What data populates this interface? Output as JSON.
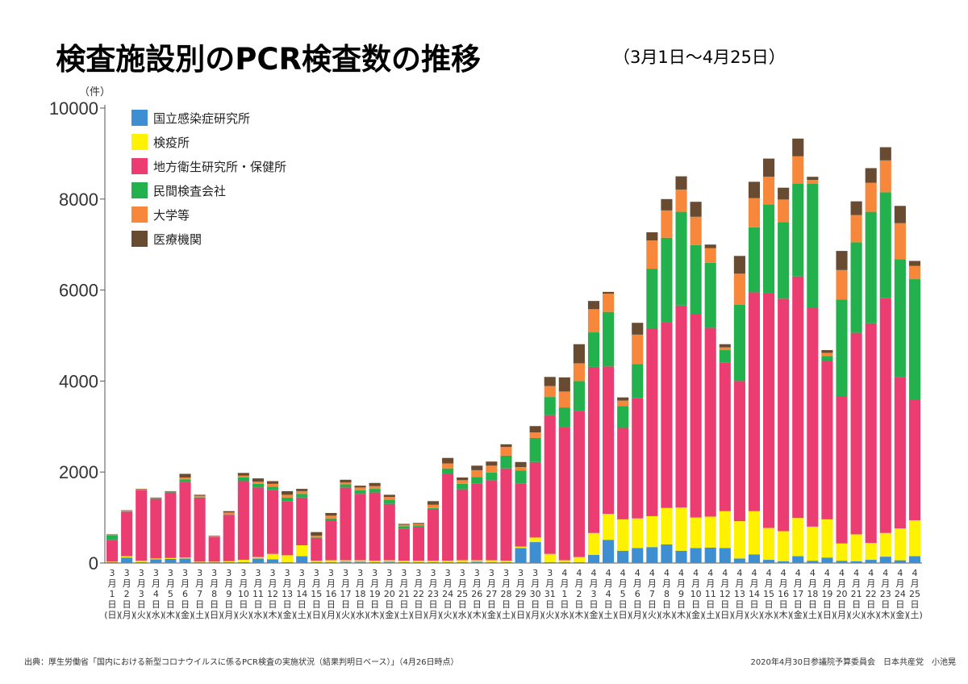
{
  "chart_data": {
    "type": "bar",
    "stacked": true,
    "title": "検査施設別のPCR検査数の推移",
    "subtitle": "（3月1日〜4月25日）",
    "ylabel": "（件）",
    "ylim": [
      0,
      10000
    ],
    "yticks": [
      0,
      2000,
      4000,
      6000,
      8000,
      10000
    ],
    "yticklabels": [
      "0",
      "2000",
      "4000",
      "6000",
      "8000",
      "10000"
    ],
    "legend_position": "top-left",
    "categories": [
      {
        "m": "3",
        "d": "1",
        "w": "日"
      },
      {
        "m": "3",
        "d": "2",
        "w": "月"
      },
      {
        "m": "3",
        "d": "3",
        "w": "火"
      },
      {
        "m": "3",
        "d": "4",
        "w": "水"
      },
      {
        "m": "3",
        "d": "5",
        "w": "木"
      },
      {
        "m": "3",
        "d": "6",
        "w": "金"
      },
      {
        "m": "3",
        "d": "7",
        "w": "土"
      },
      {
        "m": "3",
        "d": "8",
        "w": "日"
      },
      {
        "m": "3",
        "d": "9",
        "w": "月"
      },
      {
        "m": "3",
        "d": "10",
        "w": "火"
      },
      {
        "m": "3",
        "d": "11",
        "w": "水"
      },
      {
        "m": "3",
        "d": "12",
        "w": "木"
      },
      {
        "m": "3",
        "d": "13",
        "w": "金"
      },
      {
        "m": "3",
        "d": "14",
        "w": "土"
      },
      {
        "m": "3",
        "d": "15",
        "w": "日"
      },
      {
        "m": "3",
        "d": "16",
        "w": "月"
      },
      {
        "m": "3",
        "d": "17",
        "w": "火"
      },
      {
        "m": "3",
        "d": "18",
        "w": "水"
      },
      {
        "m": "3",
        "d": "19",
        "w": "木"
      },
      {
        "m": "3",
        "d": "20",
        "w": "金"
      },
      {
        "m": "3",
        "d": "21",
        "w": "土"
      },
      {
        "m": "3",
        "d": "22",
        "w": "日"
      },
      {
        "m": "3",
        "d": "23",
        "w": "月"
      },
      {
        "m": "3",
        "d": "24",
        "w": "火"
      },
      {
        "m": "3",
        "d": "25",
        "w": "水"
      },
      {
        "m": "3",
        "d": "26",
        "w": "木"
      },
      {
        "m": "3",
        "d": "27",
        "w": "金"
      },
      {
        "m": "3",
        "d": "28",
        "w": "土"
      },
      {
        "m": "3",
        "d": "29",
        "w": "日"
      },
      {
        "m": "3",
        "d": "30",
        "w": "月"
      },
      {
        "m": "3",
        "d": "31",
        "w": "火"
      },
      {
        "m": "4",
        "d": "1",
        "w": "水"
      },
      {
        "m": "4",
        "d": "2",
        "w": "木"
      },
      {
        "m": "4",
        "d": "3",
        "w": "金"
      },
      {
        "m": "4",
        "d": "4",
        "w": "土"
      },
      {
        "m": "4",
        "d": "5",
        "w": "日"
      },
      {
        "m": "4",
        "d": "6",
        "w": "月"
      },
      {
        "m": "4",
        "d": "7",
        "w": "火"
      },
      {
        "m": "4",
        "d": "8",
        "w": "水"
      },
      {
        "m": "4",
        "d": "9",
        "w": "木"
      },
      {
        "m": "4",
        "d": "10",
        "w": "金"
      },
      {
        "m": "4",
        "d": "11",
        "w": "土"
      },
      {
        "m": "4",
        "d": "12",
        "w": "日"
      },
      {
        "m": "4",
        "d": "13",
        "w": "月"
      },
      {
        "m": "4",
        "d": "14",
        "w": "火"
      },
      {
        "m": "4",
        "d": "15",
        "w": "水"
      },
      {
        "m": "4",
        "d": "16",
        "w": "木"
      },
      {
        "m": "4",
        "d": "17",
        "w": "金"
      },
      {
        "m": "4",
        "d": "18",
        "w": "土"
      },
      {
        "m": "4",
        "d": "19",
        "w": "日"
      },
      {
        "m": "4",
        "d": "20",
        "w": "月"
      },
      {
        "m": "4",
        "d": "21",
        "w": "火"
      },
      {
        "m": "4",
        "d": "22",
        "w": "水"
      },
      {
        "m": "4",
        "d": "23",
        "w": "木"
      },
      {
        "m": "4",
        "d": "24",
        "w": "金"
      },
      {
        "m": "4",
        "d": "25",
        "w": "土"
      }
    ],
    "month_suffix": "月",
    "day_suffix": "日",
    "series": [
      {
        "name": "国立感染症研究所",
        "color": "#3d8fd1",
        "values": [
          20,
          120,
          20,
          80,
          90,
          100,
          20,
          20,
          20,
          20,
          100,
          80,
          20,
          150,
          20,
          20,
          30,
          30,
          20,
          30,
          20,
          20,
          20,
          20,
          20,
          30,
          20,
          20,
          330,
          460,
          20,
          20,
          20,
          180,
          510,
          270,
          330,
          350,
          410,
          270,
          330,
          340,
          330,
          100,
          190,
          70,
          40,
          150,
          50,
          120,
          50,
          40,
          70,
          140,
          60,
          150
        ]
      },
      {
        "name": "検疫所",
        "color": "#fff200",
        "values": [
          10,
          30,
          30,
          20,
          20,
          20,
          10,
          10,
          20,
          50,
          30,
          120,
          150,
          240,
          30,
          40,
          30,
          30,
          30,
          30,
          30,
          30,
          30,
          30,
          40,
          30,
          40,
          30,
          30,
          100,
          180,
          40,
          110,
          480,
          570,
          690,
          650,
          680,
          800,
          950,
          670,
          680,
          810,
          820,
          950,
          700,
          660,
          840,
          750,
          840,
          380,
          590,
          370,
          520,
          700,
          790
        ]
      },
      {
        "name": "地方衛生研究所・保健所",
        "color": "#ec3d72",
        "values": [
          480,
          980,
          1550,
          1310,
          1440,
          1660,
          1410,
          540,
          1020,
          1730,
          1530,
          1400,
          1190,
          1050,
          500,
          880,
          1600,
          1460,
          1500,
          1240,
          700,
          750,
          1140,
          1910,
          1560,
          1680,
          1750,
          2030,
          1390,
          1660,
          3050,
          2920,
          3210,
          3650,
          3240,
          2010,
          2650,
          4130,
          4090,
          4440,
          4470,
          4150,
          3270,
          3080,
          4810,
          5160,
          5110,
          5310,
          4820,
          3490,
          3240,
          4430,
          4830,
          5160,
          3330,
          2650
        ]
      },
      {
        "name": "民間検査会社",
        "color": "#22b14c",
        "values": [
          100,
          10,
          10,
          10,
          10,
          60,
          10,
          10,
          10,
          80,
          80,
          80,
          80,
          80,
          10,
          40,
          70,
          80,
          80,
          90,
          60,
          30,
          20,
          120,
          120,
          150,
          180,
          280,
          280,
          530,
          400,
          440,
          660,
          760,
          1200,
          480,
          740,
          1310,
          1850,
          2060,
          1520,
          1430,
          270,
          1680,
          1430,
          1950,
          1680,
          2040,
          2720,
          100,
          2120,
          1990,
          2450,
          2330,
          2590,
          2650
        ]
      },
      {
        "name": "大学等",
        "color": "#f7873b",
        "values": [
          10,
          10,
          10,
          10,
          10,
          40,
          30,
          10,
          40,
          40,
          50,
          60,
          60,
          60,
          40,
          60,
          40,
          60,
          60,
          60,
          30,
          30,
          70,
          110,
          80,
          150,
          150,
          190,
          80,
          120,
          240,
          350,
          390,
          510,
          400,
          120,
          650,
          620,
          600,
          490,
          620,
          320,
          60,
          680,
          640,
          610,
          500,
          600,
          80,
          70,
          650,
          600,
          640,
          700,
          790,
          290
        ]
      },
      {
        "name": "医療機関",
        "color": "#694b32",
        "values": [
          10,
          10,
          10,
          10,
          10,
          80,
          20,
          10,
          30,
          60,
          70,
          60,
          80,
          50,
          80,
          60,
          60,
          40,
          70,
          50,
          20,
          20,
          80,
          120,
          60,
          100,
          90,
          60,
          110,
          140,
          200,
          310,
          420,
          180,
          40,
          70,
          260,
          180,
          250,
          290,
          330,
          80,
          70,
          390,
          360,
          400,
          260,
          390,
          70,
          60,
          420,
          300,
          320,
          290,
          380,
          110
        ]
      }
    ]
  },
  "source_note": "出典：厚生労働省「国内における新型コロナウイルスに係るPCR検査の実施状況（結果判明日ベース）」（4月26日時点）",
  "credit_note": "2020年4月30日参議院予算委員会　日本共産党　小池晃"
}
